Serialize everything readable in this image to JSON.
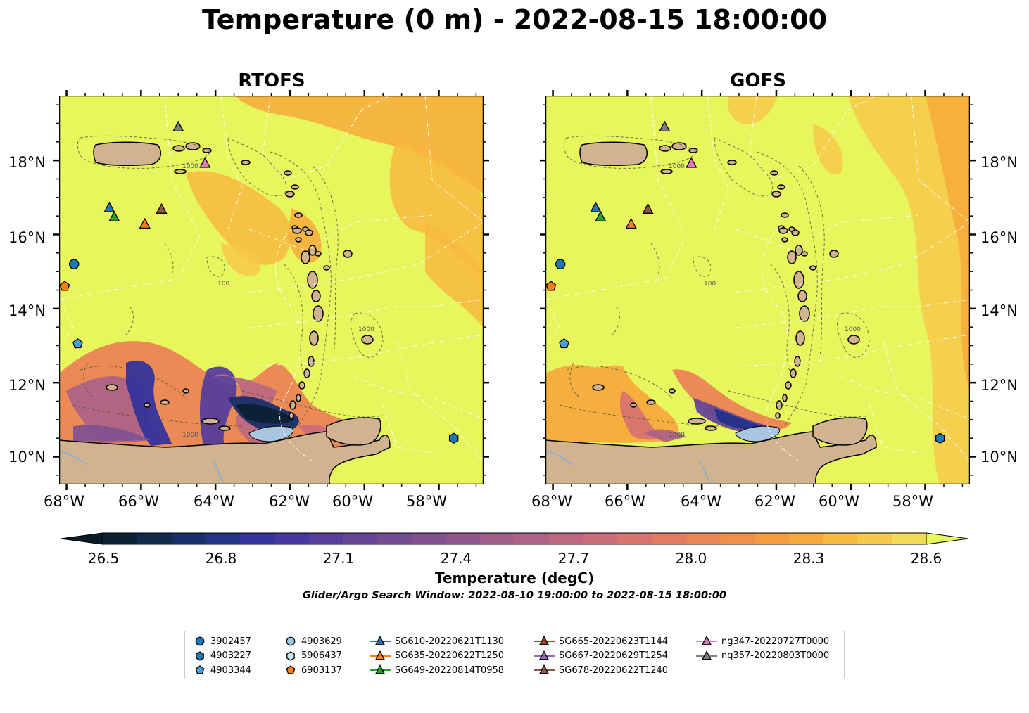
{
  "title": "Temperature (0 m) - 2022-08-15 18:00:00",
  "panels": [
    {
      "title": "RTOFS"
    },
    {
      "title": "GOFS"
    }
  ],
  "axes": {
    "lon_labels": [
      "68°W",
      "66°W",
      "64°W",
      "62°W",
      "60°W",
      "58°W"
    ],
    "lat_labels": [
      "18°N",
      "16°N",
      "14°N",
      "12°N",
      "10°N"
    ],
    "lon_range": [
      -68.2,
      -56.8
    ],
    "lat_range": [
      9.25,
      19.75
    ]
  },
  "colorbar": {
    "label": "Temperature (degC)",
    "ticks": [
      "26.5",
      "26.8",
      "27.1",
      "27.4",
      "27.7",
      "28.0",
      "28.3",
      "28.6"
    ],
    "range": [
      26.5,
      28.6
    ],
    "colors": [
      "#0c2133",
      "#0f2a4b",
      "#172f6a",
      "#24338a",
      "#34339b",
      "#46389f",
      "#573d9c",
      "#664497",
      "#744b93",
      "#82518f",
      "#91578c",
      "#a05d89",
      "#ae6385",
      "#bd6880",
      "#cb6d79",
      "#d97370",
      "#e47a62",
      "#ec8454",
      "#f29048",
      "#f59c3f",
      "#f7aa3c",
      "#f8b93f",
      "#f6c94a",
      "#f1db57"
    ],
    "under_color": "#081a28",
    "over_color": "#e6f65c"
  },
  "search_window": "Glider/Argo Search Window: 2022-08-10 19:00:00 to 2022-08-15 18:00:00",
  "contour_labels": [
    "1000",
    "100"
  ],
  "legend": [
    {
      "label": "3902457",
      "marker": "circle",
      "color": "#1f77b4"
    },
    {
      "label": "4903227",
      "marker": "hexagon",
      "color": "#1f77b4"
    },
    {
      "label": "4903344",
      "marker": "pentagon",
      "color": "#4a9ed8"
    },
    {
      "label": "4903629",
      "marker": "circle",
      "color": "#9ecae1"
    },
    {
      "label": "5906437",
      "marker": "hexagon",
      "color": "#c6e4f5"
    },
    {
      "label": "6903137",
      "marker": "pentagon",
      "color": "#ff7f0e"
    },
    {
      "label": "SG610-20220621T1130",
      "marker": "triangle-line",
      "color": "#1f77b4"
    },
    {
      "label": "SG635-20220622T1250",
      "marker": "triangle-line",
      "color": "#ff7f0e"
    },
    {
      "label": "SG649-20220814T0958",
      "marker": "triangle-line",
      "color": "#2ca02c"
    },
    {
      "label": "SG665-20220623T1144",
      "marker": "triangle-line",
      "color": "#d62728"
    },
    {
      "label": "SG667-20220629T1254",
      "marker": "triangle-line",
      "color": "#9467bd"
    },
    {
      "label": "SG678-20220622T1240",
      "marker": "triangle-line",
      "color": "#8c564b"
    },
    {
      "label": "ng347-20220727T0000",
      "marker": "triangle-line",
      "color": "#e377c2"
    },
    {
      "label": "ng357-20220803T0000",
      "marker": "triangle-line",
      "color": "#7f7f7f"
    }
  ],
  "observations": [
    {
      "id": "3902457",
      "lon": -67.8,
      "lat": 15.2
    },
    {
      "id": "6903137",
      "lon": -68.05,
      "lat": 14.6
    },
    {
      "id": "4903344",
      "lon": -67.7,
      "lat": 13.05
    },
    {
      "id": "4903227",
      "lon": -57.6,
      "lat": 10.5
    },
    {
      "id": "SG610-20220621T1130",
      "lon": -66.85,
      "lat": 16.72
    },
    {
      "id": "SG649-20220814T0958",
      "lon": -66.72,
      "lat": 16.47
    },
    {
      "id": "SG635-20220622T1250",
      "lon": -65.9,
      "lat": 16.28
    },
    {
      "id": "SG678-20220622T1240",
      "lon": -65.45,
      "lat": 16.68
    },
    {
      "id": "ng347-20220727T0000",
      "lon": -64.28,
      "lat": 17.92
    },
    {
      "id": "ng357-20220803T0000",
      "lon": -65.0,
      "lat": 18.9
    }
  ]
}
